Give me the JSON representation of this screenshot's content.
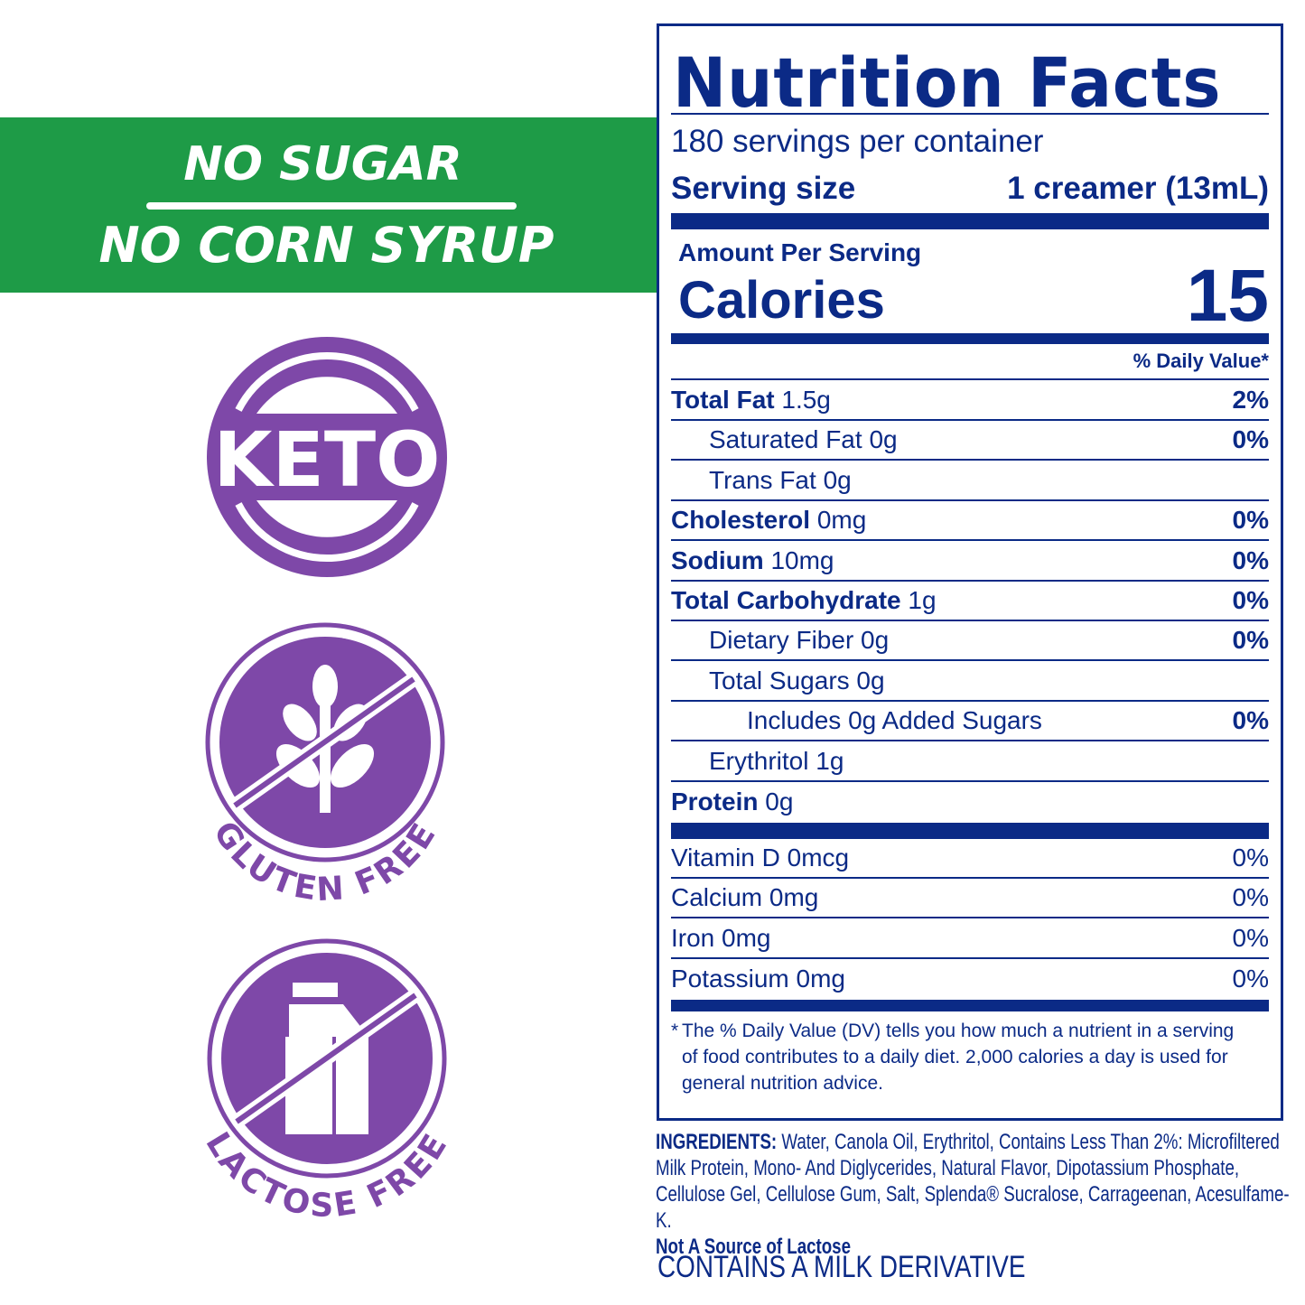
{
  "banner": {
    "line1": "NO SUGAR",
    "line2": "NO CORN SYRUP",
    "color": "#1e9b47"
  },
  "badges": {
    "color": "#7e48a8",
    "keto": "KETO",
    "gluten": "GLUTEN FREE",
    "lactose": "LACTOSE FREE",
    "gluten_icon": "wheat-icon",
    "lactose_icon": "milk-carton-icon"
  },
  "nutrition": {
    "title": "Nutrition Facts",
    "servings": "180 servings per container",
    "serving_size_label": "Serving size",
    "serving_size_value": "1 creamer (13mL)",
    "amount_per_serving": "Amount Per Serving",
    "calories_label": "Calories",
    "calories_value": "15",
    "dv_header": "% Daily Value*",
    "rows": [
      {
        "name": "Total Fat",
        "amount": "1.5g",
        "dv": "2%",
        "bold": true,
        "indent": 0
      },
      {
        "name": "Saturated Fat",
        "amount": "0g",
        "dv": "0%",
        "bold": false,
        "indent": 1
      },
      {
        "name": "Trans Fat",
        "amount": "0g",
        "dv": "",
        "bold": false,
        "indent": 1
      },
      {
        "name": "Cholesterol",
        "amount": "0mg",
        "dv": "0%",
        "bold": true,
        "indent": 0
      },
      {
        "name": "Sodium",
        "amount": "10mg",
        "dv": "0%",
        "bold": true,
        "indent": 0
      },
      {
        "name": "Total Carbohydrate",
        "amount": "1g",
        "dv": "0%",
        "bold": true,
        "indent": 0
      },
      {
        "name": "Dietary Fiber",
        "amount": "0g",
        "dv": "0%",
        "bold": false,
        "indent": 1
      },
      {
        "name": "Total Sugars",
        "amount": "0g",
        "dv": "",
        "bold": false,
        "indent": 1
      },
      {
        "name": "Includes 0g Added Sugars",
        "amount": "",
        "dv": "0%",
        "bold": false,
        "indent": 2
      },
      {
        "name": "Erythritol",
        "amount": "1g",
        "dv": "",
        "bold": false,
        "indent": 1
      },
      {
        "name": "Protein",
        "amount": "0g",
        "dv": "",
        "bold": true,
        "indent": 0
      }
    ],
    "vitamins": [
      {
        "name": "Vitamin D 0mcg",
        "dv": "0%"
      },
      {
        "name": "Calcium 0mg",
        "dv": "0%"
      },
      {
        "name": "Iron 0mg",
        "dv": "0%"
      },
      {
        "name": "Potassium 0mg",
        "dv": "0%"
      }
    ],
    "footnote": "The % Daily Value (DV) tells you how much a nutrient in a serving of food contributes to a daily diet. 2,000 calories a day is used for general nutrition advice.",
    "footnote_mark": "*",
    "color": "#0b2a86"
  },
  "ingredients": {
    "label": "INGREDIENTS:",
    "text": " Water, Canola Oil, Erythritol, Contains Less Than 2%: Microfiltered Milk Protein, Mono- And Diglycerides, Natural Flavor, Dipotassium Phosphate, Cellulose Gel, Cellulose Gum, Salt, Splenda® Sucralose, Carrageenan, Acesulfame-K.",
    "note": "Not A Source of Lactose"
  },
  "allergen": "CONTAINS A MILK DERIVATIVE"
}
